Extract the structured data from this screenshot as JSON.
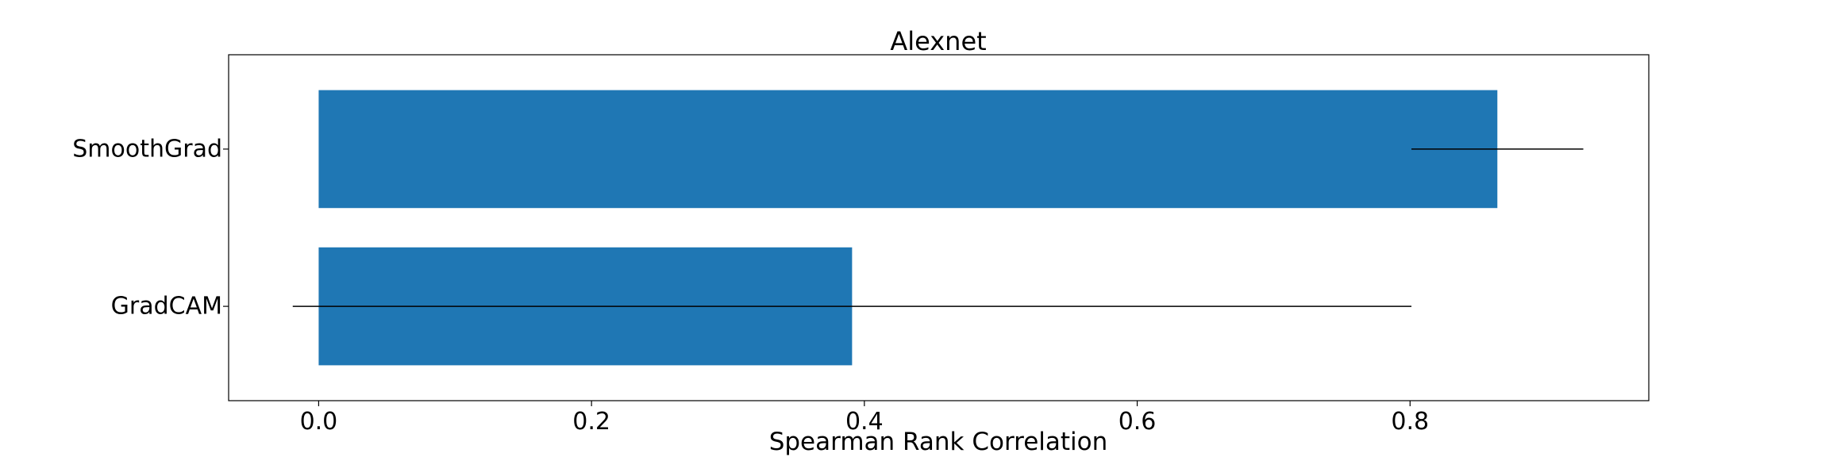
{
  "chart_data": {
    "type": "bar",
    "orientation": "horizontal",
    "title": "Alexnet",
    "xlabel": "Spearman Rank Correlation",
    "ylabel": "",
    "categories": [
      "SmoothGrad",
      "GradCAM"
    ],
    "values": [
      0.864,
      0.391
    ],
    "error": [
      0.063,
      0.41
    ],
    "xlim": [
      -0.066,
      0.975
    ],
    "xticks": [
      0.0,
      0.2,
      0.4,
      0.6,
      0.8
    ],
    "xtick_labels": [
      "0.0",
      "0.2",
      "0.4",
      "0.6",
      "0.8"
    ],
    "bar_color": "#1f77b4",
    "error_color": "#000000",
    "grid": false,
    "legend": "none"
  }
}
